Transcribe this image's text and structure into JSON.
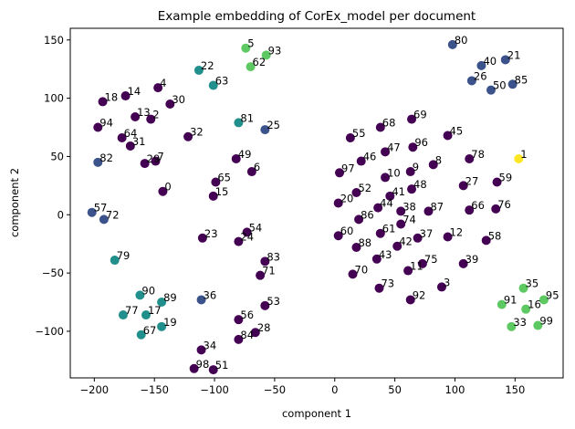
{
  "chart_data": {
    "type": "scatter",
    "title": "Example embedding of CorEx_model per document",
    "xlabel": "component 1",
    "ylabel": "component 2",
    "xlim": [
      -220,
      190
    ],
    "ylim": [
      -140,
      160
    ],
    "xticks": [
      -200,
      -150,
      -100,
      -50,
      0,
      50,
      100,
      150
    ],
    "yticks": [
      -100,
      -50,
      0,
      50,
      100,
      150
    ],
    "grid": false,
    "colormap": "viridis",
    "colors": {
      "purple": "#440154",
      "slate": "#3b528b",
      "teal": "#21908d",
      "green": "#5ec962",
      "yellow": "#fde725"
    },
    "points": [
      {
        "label": "0",
        "x": -143,
        "y": 20,
        "color": "purple"
      },
      {
        "label": "1",
        "x": 153,
        "y": 48,
        "color": "yellow"
      },
      {
        "label": "2",
        "x": -153,
        "y": 82,
        "color": "purple"
      },
      {
        "label": "3",
        "x": 89,
        "y": -62,
        "color": "purple"
      },
      {
        "label": "4",
        "x": -147,
        "y": 109,
        "color": "purple"
      },
      {
        "label": "5",
        "x": -74,
        "y": 143,
        "color": "green"
      },
      {
        "label": "6",
        "x": -69,
        "y": 37,
        "color": "purple"
      },
      {
        "label": "7",
        "x": -149,
        "y": 46,
        "color": "purple"
      },
      {
        "label": "8",
        "x": 82,
        "y": 43,
        "color": "purple"
      },
      {
        "label": "9",
        "x": 63,
        "y": 37,
        "color": "purple"
      },
      {
        "label": "10",
        "x": 42,
        "y": 32,
        "color": "purple"
      },
      {
        "label": "11",
        "x": 61,
        "y": -48,
        "color": "purple"
      },
      {
        "label": "12",
        "x": 94,
        "y": -19,
        "color": "purple"
      },
      {
        "label": "13",
        "x": -166,
        "y": 84,
        "color": "purple"
      },
      {
        "label": "14",
        "x": -174,
        "y": 102,
        "color": "purple"
      },
      {
        "label": "15",
        "x": -101,
        "y": 16,
        "color": "purple"
      },
      {
        "label": "16",
        "x": 159,
        "y": -81,
        "color": "green"
      },
      {
        "label": "17",
        "x": -157,
        "y": -86,
        "color": "teal"
      },
      {
        "label": "18",
        "x": -193,
        "y": 97,
        "color": "purple"
      },
      {
        "label": "19",
        "x": -144,
        "y": -96,
        "color": "teal"
      },
      {
        "label": "20",
        "x": 3,
        "y": 10,
        "color": "purple"
      },
      {
        "label": "21",
        "x": 142,
        "y": 133,
        "color": "slate"
      },
      {
        "label": "22",
        "x": -113,
        "y": 124,
        "color": "teal"
      },
      {
        "label": "23",
        "x": -110,
        "y": -20,
        "color": "purple"
      },
      {
        "label": "24",
        "x": -80,
        "y": -23,
        "color": "purple"
      },
      {
        "label": "25",
        "x": -58,
        "y": 73,
        "color": "slate"
      },
      {
        "label": "26",
        "x": 114,
        "y": 115,
        "color": "slate"
      },
      {
        "label": "27",
        "x": 107,
        "y": 25,
        "color": "purple"
      },
      {
        "label": "28",
        "x": -66,
        "y": -101,
        "color": "purple"
      },
      {
        "label": "29",
        "x": -158,
        "y": 44,
        "color": "purple"
      },
      {
        "label": "30",
        "x": -137,
        "y": 95,
        "color": "purple"
      },
      {
        "label": "31",
        "x": -170,
        "y": 59,
        "color": "purple"
      },
      {
        "label": "32",
        "x": -122,
        "y": 67,
        "color": "purple"
      },
      {
        "label": "33",
        "x": 147,
        "y": -96,
        "color": "green"
      },
      {
        "label": "34",
        "x": -111,
        "y": -116,
        "color": "purple"
      },
      {
        "label": "35",
        "x": 157,
        "y": -63,
        "color": "green"
      },
      {
        "label": "36",
        "x": -111,
        "y": -73,
        "color": "slate"
      },
      {
        "label": "37",
        "x": 69,
        "y": -20,
        "color": "purple"
      },
      {
        "label": "38",
        "x": 55,
        "y": 3,
        "color": "purple"
      },
      {
        "label": "39",
        "x": 107,
        "y": -42,
        "color": "purple"
      },
      {
        "label": "40",
        "x": 122,
        "y": 128,
        "color": "slate"
      },
      {
        "label": "41",
        "x": 46,
        "y": 16,
        "color": "purple"
      },
      {
        "label": "42",
        "x": 52,
        "y": -27,
        "color": "purple"
      },
      {
        "label": "43",
        "x": 35,
        "y": -38,
        "color": "purple"
      },
      {
        "label": "44",
        "x": 36,
        "y": 6,
        "color": "purple"
      },
      {
        "label": "45",
        "x": 94,
        "y": 68,
        "color": "purple"
      },
      {
        "label": "46",
        "x": 22,
        "y": 46,
        "color": "purple"
      },
      {
        "label": "47",
        "x": 42,
        "y": 54,
        "color": "purple"
      },
      {
        "label": "48",
        "x": 64,
        "y": 22,
        "color": "purple"
      },
      {
        "label": "49",
        "x": -82,
        "y": 48,
        "color": "purple"
      },
      {
        "label": "50",
        "x": 130,
        "y": 107,
        "color": "slate"
      },
      {
        "label": "51",
        "x": -101,
        "y": -133,
        "color": "purple"
      },
      {
        "label": "52",
        "x": 18,
        "y": 19,
        "color": "purple"
      },
      {
        "label": "53",
        "x": -58,
        "y": -78,
        "color": "purple"
      },
      {
        "label": "54",
        "x": -73,
        "y": -15,
        "color": "purple"
      },
      {
        "label": "55",
        "x": 13,
        "y": 66,
        "color": "purple"
      },
      {
        "label": "56",
        "x": -80,
        "y": -90,
        "color": "purple"
      },
      {
        "label": "57",
        "x": -202,
        "y": 2,
        "color": "slate"
      },
      {
        "label": "58",
        "x": 126,
        "y": -22,
        "color": "purple"
      },
      {
        "label": "59",
        "x": 135,
        "y": 28,
        "color": "purple"
      },
      {
        "label": "60",
        "x": 3,
        "y": -18,
        "color": "purple"
      },
      {
        "label": "61",
        "x": 38,
        "y": -16,
        "color": "purple"
      },
      {
        "label": "62",
        "x": -70,
        "y": 127,
        "color": "green"
      },
      {
        "label": "63",
        "x": -101,
        "y": 111,
        "color": "teal"
      },
      {
        "label": "64",
        "x": -177,
        "y": 66,
        "color": "purple"
      },
      {
        "label": "65",
        "x": -99,
        "y": 28,
        "color": "purple"
      },
      {
        "label": "66",
        "x": 112,
        "y": 4,
        "color": "purple"
      },
      {
        "label": "67",
        "x": -161,
        "y": -103,
        "color": "teal"
      },
      {
        "label": "68",
        "x": 38,
        "y": 75,
        "color": "purple"
      },
      {
        "label": "69",
        "x": 64,
        "y": 82,
        "color": "purple"
      },
      {
        "label": "70",
        "x": 15,
        "y": -51,
        "color": "purple"
      },
      {
        "label": "71",
        "x": -62,
        "y": -52,
        "color": "purple"
      },
      {
        "label": "72",
        "x": -192,
        "y": -4,
        "color": "slate"
      },
      {
        "label": "73",
        "x": 37,
        "y": -63,
        "color": "purple"
      },
      {
        "label": "74",
        "x": 55,
        "y": -8,
        "color": "purple"
      },
      {
        "label": "75",
        "x": 73,
        "y": -42,
        "color": "purple"
      },
      {
        "label": "76",
        "x": 134,
        "y": 5,
        "color": "purple"
      },
      {
        "label": "77",
        "x": -176,
        "y": -86,
        "color": "teal"
      },
      {
        "label": "78",
        "x": 112,
        "y": 48,
        "color": "purple"
      },
      {
        "label": "79",
        "x": -183,
        "y": -39,
        "color": "teal"
      },
      {
        "label": "80",
        "x": 98,
        "y": 146,
        "color": "slate"
      },
      {
        "label": "81",
        "x": -80,
        "y": 79,
        "color": "teal"
      },
      {
        "label": "82",
        "x": -197,
        "y": 45,
        "color": "slate"
      },
      {
        "label": "83",
        "x": -58,
        "y": -40,
        "color": "purple"
      },
      {
        "label": "84",
        "x": -80,
        "y": -107,
        "color": "purple"
      },
      {
        "label": "85",
        "x": 148,
        "y": 112,
        "color": "slate"
      },
      {
        "label": "86",
        "x": 20,
        "y": -4,
        "color": "purple"
      },
      {
        "label": "87",
        "x": 78,
        "y": 3,
        "color": "purple"
      },
      {
        "label": "88",
        "x": 18,
        "y": -28,
        "color": "purple"
      },
      {
        "label": "89",
        "x": -144,
        "y": -75,
        "color": "teal"
      },
      {
        "label": "90",
        "x": -162,
        "y": -69,
        "color": "teal"
      },
      {
        "label": "91",
        "x": 139,
        "y": -77,
        "color": "green"
      },
      {
        "label": "92",
        "x": 63,
        "y": -73,
        "color": "purple"
      },
      {
        "label": "93",
        "x": -57,
        "y": 137,
        "color": "green"
      },
      {
        "label": "94",
        "x": -197,
        "y": 75,
        "color": "purple"
      },
      {
        "label": "95",
        "x": 174,
        "y": -73,
        "color": "green"
      },
      {
        "label": "96",
        "x": 65,
        "y": 58,
        "color": "purple"
      },
      {
        "label": "97",
        "x": 4,
        "y": 36,
        "color": "purple"
      },
      {
        "label": "98",
        "x": -117,
        "y": -132,
        "color": "purple"
      },
      {
        "label": "99",
        "x": 169,
        "y": -95,
        "color": "green"
      }
    ]
  }
}
